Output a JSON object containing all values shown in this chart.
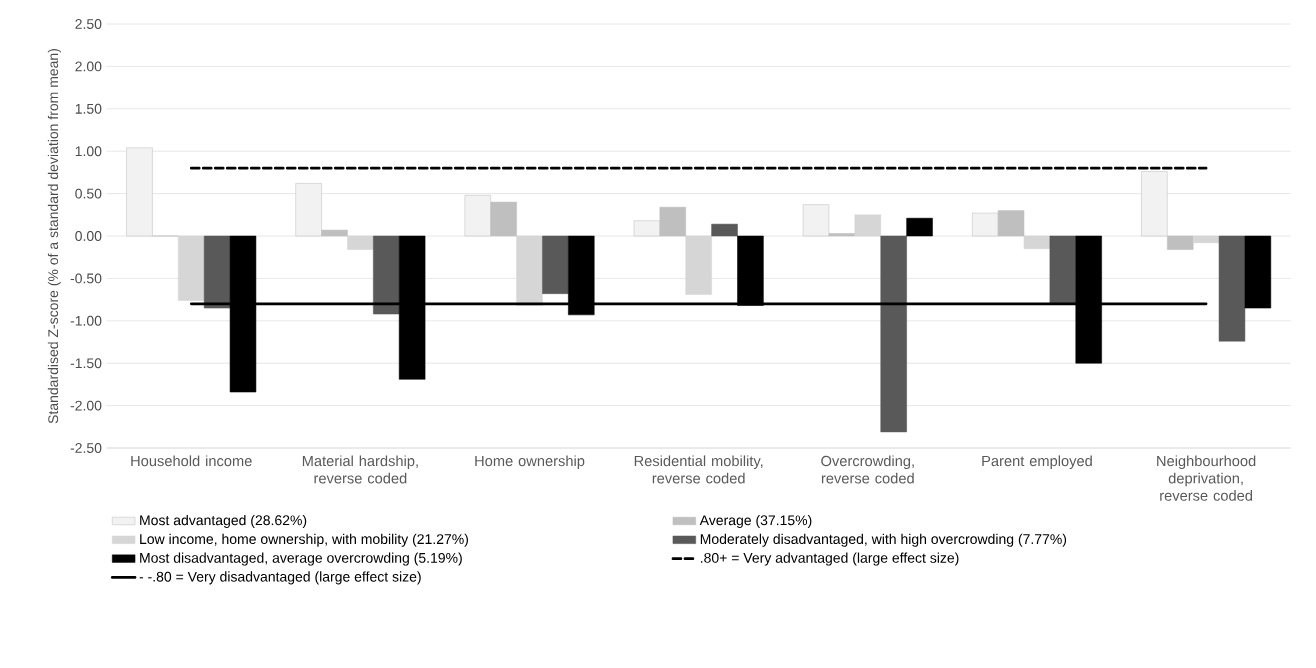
{
  "chart_data": {
    "type": "bar",
    "ylabel": "Standardised Z-score (% of a standard deviation from mean)",
    "categories": [
      "Household income",
      "Material hardship, reverse coded",
      "Home ownership",
      "Residential mobility, reverse coded",
      "Overcrowding, reverse coded",
      "Parent employed",
      "Neighbourhood deprivation, reverse coded"
    ],
    "series": [
      {
        "name": "Most advantaged (28.62%)",
        "color": "#f2f2f2",
        "values": [
          1.04,
          0.62,
          0.48,
          0.18,
          0.37,
          0.27,
          0.76
        ]
      },
      {
        "name": "Average (37.15%)",
        "color": "#bfbfbf",
        "values": [
          0,
          0.07,
          0.4,
          0.34,
          0.03,
          0.3,
          -0.16
        ]
      },
      {
        "name": "Low income, home ownership, with mobility (21.27%)",
        "color": "#d6d6d6",
        "values": [
          -0.76,
          -0.16,
          -0.82,
          -0.69,
          0.25,
          -0.15,
          -0.08
        ]
      },
      {
        "name": "Moderately disadvantaged, with high overcrowding (7.77%)",
        "color": "#595959",
        "values": [
          -0.85,
          -0.92,
          -0.68,
          0.14,
          -2.31,
          -0.79,
          -1.24
        ]
      },
      {
        "name": "Most disadvantaged, average overcrowding (5.19%)",
        "color": "#000000",
        "values": [
          -1.84,
          -1.69,
          -0.93,
          -0.82,
          0.21,
          -1.5,
          -0.85
        ]
      }
    ],
    "ref_lines": [
      {
        "axis": "y",
        "value": 0.8,
        "label": ".80+ = Very advantaged (large effect size)",
        "color": "#000000",
        "line_style": "dashed"
      },
      {
        "axis": "y",
        "value": -0.8,
        "label": "- -.80 = Very disadvantaged (large effect size)",
        "color": "#000000",
        "line_style": "solid"
      }
    ],
    "ylim": [
      -2.5,
      2.5
    ],
    "yticks": [
      {
        "value": -2.5,
        "label": "-2.50"
      },
      {
        "value": -2.0,
        "label": "-2.00"
      },
      {
        "value": -1.5,
        "label": "-1.50"
      },
      {
        "value": -1.0,
        "label": "-1.00"
      },
      {
        "value": -0.5,
        "label": "-0.50"
      },
      {
        "value": 0,
        "label": "0.00"
      },
      {
        "value": 0.5,
        "label": "0.50"
      },
      {
        "value": 1.0,
        "label": "1.00"
      },
      {
        "value": 1.5,
        "label": "1.50"
      },
      {
        "value": 2.0,
        "label": "2.00"
      },
      {
        "value": 2.5,
        "label": "2.50"
      }
    ],
    "grid": "y",
    "legend": "bottom"
  }
}
